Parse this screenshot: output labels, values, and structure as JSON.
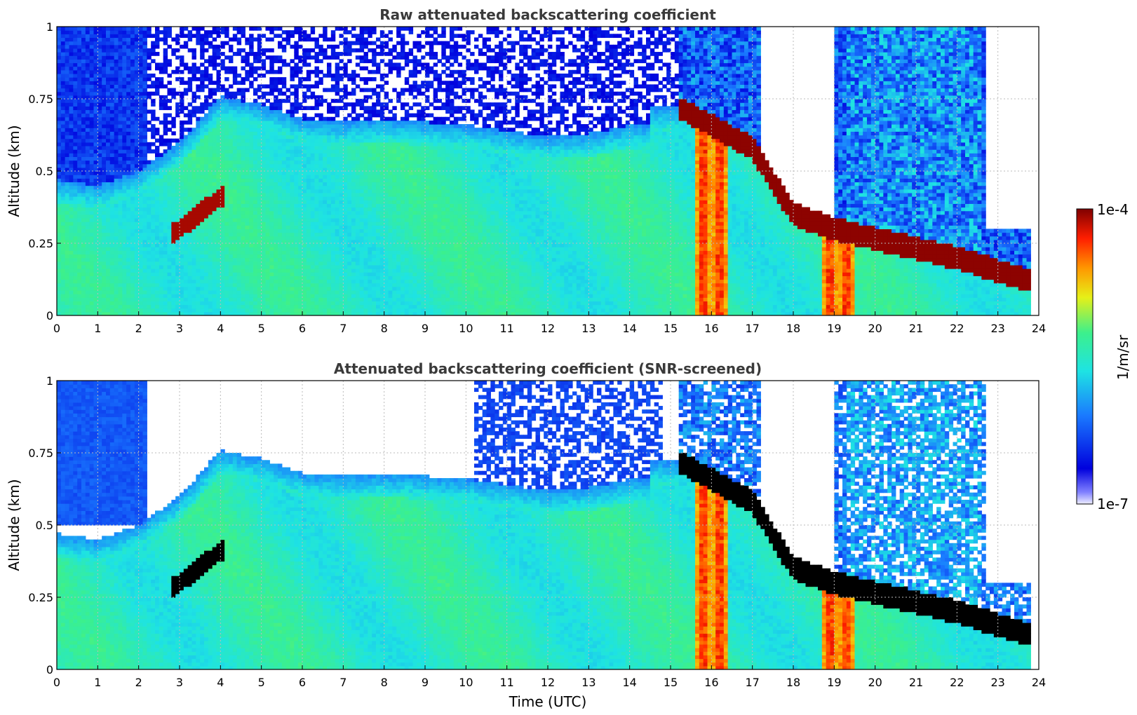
{
  "chart_data": [
    {
      "type": "heatmap",
      "title": "Raw attenuated backscattering coefficient",
      "ylabel": "Altitude (km)",
      "xlabel": "",
      "xlim": [
        0,
        24
      ],
      "ylim": [
        0,
        1
      ],
      "x_ticks": [
        "0",
        "1",
        "2",
        "3",
        "4",
        "5",
        "6",
        "7",
        "8",
        "9",
        "10",
        "11",
        "12",
        "13",
        "14",
        "15",
        "16",
        "17",
        "18",
        "19",
        "20",
        "21",
        "22",
        "23",
        "24"
      ],
      "y_ticks": [
        "0",
        "0.25",
        "0.5",
        "0.75",
        "1"
      ],
      "grid": true,
      "color_scale": "log",
      "layers": {
        "boundary_layer_top_km": [
          {
            "t": 0,
            "z": 0.47
          },
          {
            "t": 1,
            "z": 0.45
          },
          {
            "t": 2,
            "z": 0.5
          },
          {
            "t": 3,
            "z": 0.6
          },
          {
            "t": 4,
            "z": 0.76
          },
          {
            "t": 5,
            "z": 0.73
          },
          {
            "t": 6,
            "z": 0.68
          },
          {
            "t": 7,
            "z": 0.67
          },
          {
            "t": 8,
            "z": 0.68
          },
          {
            "t": 9,
            "z": 0.67
          },
          {
            "t": 10,
            "z": 0.66
          },
          {
            "t": 11,
            "z": 0.64
          },
          {
            "t": 12,
            "z": 0.62
          },
          {
            "t": 13,
            "z": 0.63
          },
          {
            "t": 14,
            "z": 0.66
          }
        ],
        "cloud_base_km": [
          {
            "t": 15.2,
            "z": 0.72
          },
          {
            "t": 16,
            "z": 0.66
          },
          {
            "t": 17,
            "z": 0.58
          },
          {
            "t": 18,
            "z": 0.35
          },
          {
            "t": 19,
            "z": 0.3
          },
          {
            "t": 22,
            "z": 0.2
          },
          {
            "t": 23.8,
            "z": 0.12
          }
        ],
        "aerosol_layer": {
          "t_start": 2.8,
          "t_end": 4.1,
          "z_start": 0.28,
          "z_end": 0.42
        },
        "precipitation_columns_utc": [
          15.8,
          16.2,
          18.9,
          19.3
        ]
      }
    },
    {
      "type": "heatmap",
      "title": "Attenuated backscattering coefficient (SNR-screened)",
      "ylabel": "Altitude (km)",
      "xlabel": "Time (UTC)",
      "xlim": [
        0,
        24
      ],
      "ylim": [
        0,
        1
      ],
      "x_ticks": [
        "0",
        "1",
        "2",
        "3",
        "4",
        "5",
        "6",
        "7",
        "8",
        "9",
        "10",
        "11",
        "12",
        "13",
        "14",
        "15",
        "16",
        "17",
        "18",
        "19",
        "20",
        "21",
        "22",
        "23",
        "24"
      ],
      "y_ticks": [
        "0",
        "0.25",
        "0.5",
        "0.75",
        "1"
      ],
      "grid": true,
      "color_scale": "log",
      "saturated_values_color": "#000000"
    }
  ],
  "colorbar": {
    "label": "1/m/sr",
    "max_label": "1e-4",
    "min_label": "1e-7",
    "range": [
      1e-07,
      0.0001
    ],
    "colormap": [
      "#eeeeff",
      "#0000dd",
      "#1a7aff",
      "#1ee3e3",
      "#3cf08c",
      "#e6f018",
      "#ff9600",
      "#ff1e00",
      "#800000"
    ]
  },
  "colors": {
    "title": "#3a3a3a",
    "grid": "#bbbbbb",
    "axis": "#000000",
    "screen_out": "#ffffff"
  }
}
